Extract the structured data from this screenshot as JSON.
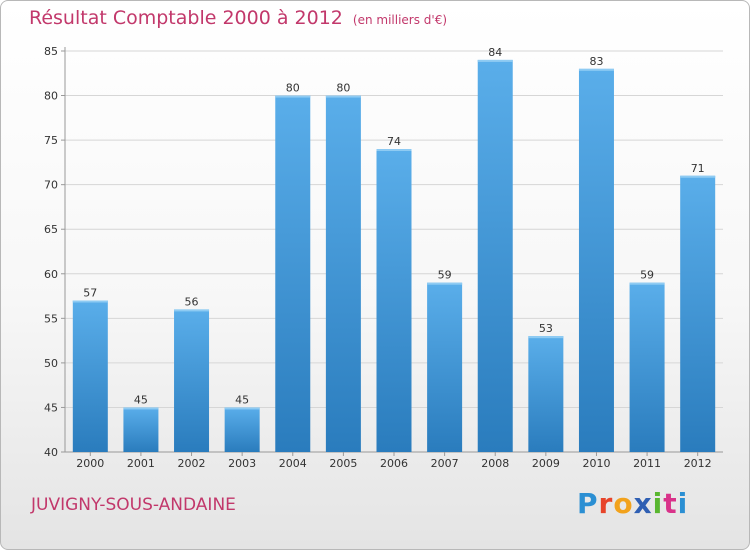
{
  "header": {
    "title": "Résultat Comptable 2000 à 2012",
    "unit": "(en milliers d'€)"
  },
  "footer": {
    "location": "JUVIGNY-SOUS-ANDAINE",
    "logo": "Proxiti"
  },
  "colors": {
    "title": "#c2386b",
    "bar_top": "#5aaeea",
    "bar_bottom": "#2a7cbd",
    "grid": "#d6d6d6",
    "axis": "#999999"
  },
  "chart_data": {
    "type": "bar",
    "title": "Résultat Comptable 2000 à 2012",
    "subtitle": "(en milliers d'€)",
    "categories": [
      "2000",
      "2001",
      "2002",
      "2003",
      "2004",
      "2005",
      "2006",
      "2007",
      "2008",
      "2009",
      "2010",
      "2011",
      "2012"
    ],
    "values": [
      57,
      45,
      56,
      45,
      80,
      80,
      74,
      59,
      84,
      53,
      83,
      59,
      71
    ],
    "ylim": [
      40,
      85
    ],
    "yticks": [
      40,
      45,
      50,
      55,
      60,
      65,
      70,
      75,
      80,
      85
    ],
    "grid": true,
    "data_labels": true
  }
}
